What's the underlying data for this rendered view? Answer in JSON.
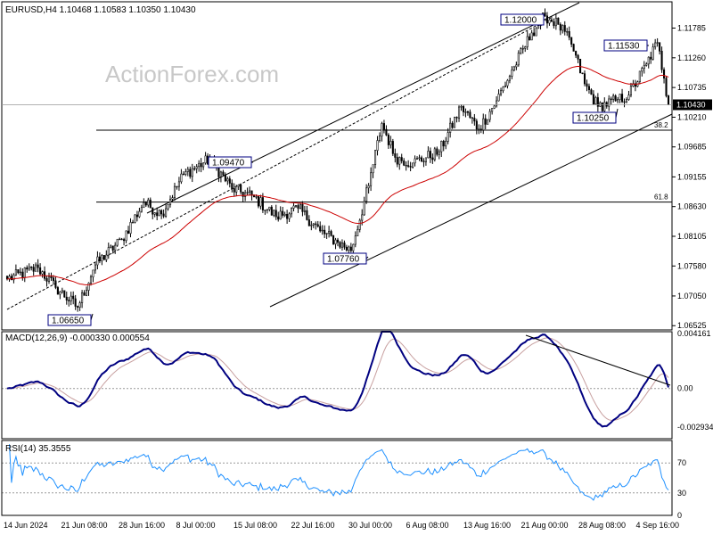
{
  "header": {
    "symbol": "EURUSD,H4",
    "ohlc": "1.10468 1.10583 1.10350 1.10430",
    "watermark": "ActionForex.com",
    "macd_label": "MACD(12,26,9) -0.000330 0.000554",
    "rsi_label": "RSI(14) 35.3555"
  },
  "colors": {
    "candle": "#000000",
    "ma": "#cc0000",
    "macd": "#000080",
    "signal": "#c8a0a0",
    "rsi": "#1e90ff",
    "trend": "#000000",
    "price_box": "#000000"
  },
  "chart_data": [
    {
      "type": "candlestick",
      "title": "EURUSD,H4",
      "ylim": [
        1.0645,
        1.1225
      ],
      "y_ticks": [
        "1.11785",
        "1.11260",
        "1.10735",
        "1.10210",
        "1.09685",
        "1.09155",
        "1.08630",
        "1.08105",
        "1.07580",
        "1.07050",
        "1.06525"
      ],
      "current_price": "1.10430",
      "x_ticks": [
        "14 Jun 2024",
        "21 Jun 08:00",
        "28 Jun 16:00",
        "8 Jul 00:00",
        "15 Jul 08:00",
        "22 Jul 16:00",
        "30 Jul 00:00",
        "6 Aug 08:00",
        "13 Aug 16:00",
        "21 Aug 00:00",
        "28 Aug 08:00",
        "4 Sep 16:00"
      ],
      "anchors": [
        [
          0,
          1.0735
        ],
        [
          14,
          1.0755
        ],
        [
          22,
          1.072
        ],
        [
          32,
          1.0685
        ],
        [
          40,
          1.076
        ],
        [
          52,
          1.0805
        ],
        [
          62,
          1.087
        ],
        [
          70,
          1.085
        ],
        [
          80,
          1.092
        ],
        [
          92,
          1.0947
        ],
        [
          102,
          1.0895
        ],
        [
          112,
          1.088
        ],
        [
          122,
          1.0845
        ],
        [
          132,
          1.086
        ],
        [
          142,
          1.082
        ],
        [
          150,
          1.08
        ],
        [
          156,
          1.0785
        ],
        [
          164,
          1.09
        ],
        [
          170,
          1.101
        ],
        [
          176,
          1.095
        ],
        [
          184,
          1.094
        ],
        [
          196,
          1.096
        ],
        [
          206,
          1.104
        ],
        [
          214,
          1.1
        ],
        [
          222,
          1.105
        ],
        [
          230,
          1.111
        ],
        [
          238,
          1.117
        ],
        [
          244,
          1.12
        ],
        [
          250,
          1.1185
        ],
        [
          256,
          1.115
        ],
        [
          262,
          1.108
        ],
        [
          268,
          1.104
        ],
        [
          276,
          1.105
        ],
        [
          282,
          1.106
        ],
        [
          290,
          1.1115
        ],
        [
          295,
          1.1153
        ],
        [
          298,
          1.109
        ],
        [
          300,
          1.1043
        ]
      ],
      "annotations": [
        "1.12000",
        "1.11530",
        "1.10250",
        "1.09470",
        "1.07760",
        "1.06650"
      ],
      "fib_levels": [
        {
          "label": "38.2",
          "price": 1.0998
        },
        {
          "label": "61.8",
          "price": 1.0871
        }
      ],
      "ma_period": 55
    },
    {
      "type": "line",
      "title": "MACD(12,26,9)",
      "ylim": [
        -0.0038,
        0.0043
      ],
      "y_ticks": [
        "0.004161",
        "0.00",
        "-0.002934"
      ]
    },
    {
      "type": "line",
      "title": "RSI(14)",
      "ylim": [
        0,
        100
      ],
      "y_ticks": [
        "70",
        "30",
        "0"
      ],
      "levels": [
        30,
        70
      ]
    }
  ]
}
